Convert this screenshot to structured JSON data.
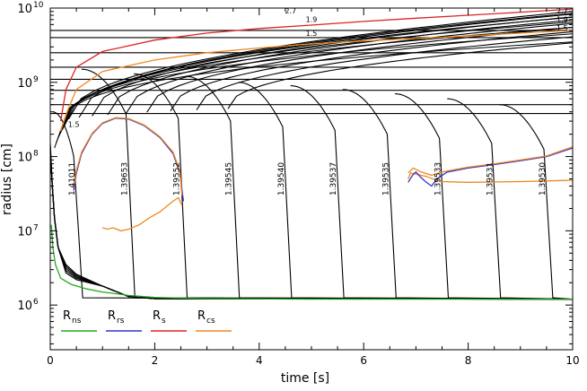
{
  "chart_data": {
    "type": "line",
    "xlabel": "time [s]",
    "ylabel": "radius [cm]",
    "xlim": [
      0,
      10
    ],
    "ylim": [
      250000,
      10000000000
    ],
    "y_scale": "log",
    "x_ticks": [
      "0",
      "2",
      "4",
      "6",
      "8",
      "10"
    ],
    "y_ticks": [
      {
        "base": "10",
        "exp": "6",
        "value": 1000000
      },
      {
        "base": "10",
        "exp": "7",
        "value": 10000000
      },
      {
        "base": "10",
        "exp": "8",
        "value": 100000000
      },
      {
        "base": "10",
        "exp": "9",
        "value": 1000000000
      },
      {
        "base": "10",
        "exp": "10",
        "value": 10000000000
      }
    ],
    "legend": [
      {
        "label_main": "R",
        "label_sub": "ns",
        "color": "#22aa22"
      },
      {
        "label_main": "R",
        "label_sub": "rs",
        "color": "#3333cc"
      },
      {
        "label_main": "R",
        "label_sub": "s",
        "color": "#dd2222"
      },
      {
        "label_main": "R",
        "label_sub": "cs",
        "color": "#ee8822"
      }
    ],
    "legend_position": "bottom-left",
    "colors": {
      "black": "#000000",
      "green": "#22aa22",
      "blue": "#3333cc",
      "red": "#dd2222",
      "orange": "#ee8822"
    },
    "shell_labels": [
      {
        "text": "1.41011",
        "x": 0.5
      },
      {
        "text": "1.39653",
        "x": 1.5
      },
      {
        "text": "1.39552",
        "x": 2.5
      },
      {
        "text": "1.39545",
        "x": 3.5
      },
      {
        "text": "1.39540",
        "x": 4.5
      },
      {
        "text": "1.39537",
        "x": 5.5
      },
      {
        "text": "1.39535",
        "x": 6.5
      },
      {
        "text": "1.39533",
        "x": 7.5
      },
      {
        "text": "1.39531",
        "x": 8.5
      },
      {
        "text": "1.39530",
        "x": 9.5
      }
    ],
    "shell_label_y": 50000000,
    "small_labels": [
      {
        "text": "2.7",
        "x": 4.6,
        "y": 8500000000
      },
      {
        "text": "1.9",
        "x": 5.0,
        "y": 6500000000
      },
      {
        "text": "1.5",
        "x": 5.0,
        "y": 4200000000
      },
      {
        "text": "2.7",
        "x": 9.8,
        "y": 8500000000
      },
      {
        "text": "1.9",
        "x": 9.8,
        "y": 6500000000
      },
      {
        "text": "1.5",
        "x": 9.8,
        "y": 5000000000
      },
      {
        "text": "1.5",
        "x": 0.45,
        "y": 250000000
      }
    ],
    "series": [
      {
        "name": "",
        "color": "green",
        "points": [
          [
            0.02,
            12000000
          ],
          [
            0.05,
            6000000
          ],
          [
            0.1,
            3500000
          ],
          [
            0.2,
            2300000
          ],
          [
            0.4,
            1900000
          ],
          [
            0.7,
            1650000
          ],
          [
            1.0,
            1500000
          ],
          [
            1.5,
            1350000
          ],
          [
            2.0,
            1270000
          ],
          [
            3.0,
            1220000
          ],
          [
            5.0,
            1200000
          ],
          [
            10.0,
            1200000
          ]
        ]
      },
      {
        "name": "",
        "color": "red",
        "points": [
          [
            0.2,
            300000000
          ],
          [
            0.3,
            800000000
          ],
          [
            0.5,
            1600000000
          ],
          [
            1.0,
            2600000000
          ],
          [
            2.0,
            3700000000
          ],
          [
            3.0,
            4600000000
          ],
          [
            4.0,
            5300000000
          ],
          [
            5.0,
            5900000000
          ],
          [
            6.0,
            6600000000
          ],
          [
            7.0,
            7300000000
          ],
          [
            8.0,
            8000000000
          ],
          [
            9.0,
            8800000000
          ],
          [
            10.0,
            9700000000
          ]
        ]
      },
      {
        "name": "",
        "color": "orange",
        "points": [
          [
            0.2,
            220000000
          ],
          [
            0.35,
            450000000
          ],
          [
            0.5,
            800000000
          ],
          [
            1.0,
            1400000000
          ],
          [
            2.0,
            2000000000
          ],
          [
            3.0,
            2500000000
          ],
          [
            4.0,
            2900000000
          ],
          [
            5.0,
            3300000000
          ],
          [
            6.0,
            3600000000
          ],
          [
            7.0,
            3900000000
          ],
          [
            8.0,
            4200000000
          ],
          [
            9.0,
            4600000000
          ],
          [
            10.0,
            5000000000
          ]
        ]
      },
      {
        "name": "",
        "color": "blue",
        "points": [
          [
            0.45,
            35000000
          ],
          [
            0.5,
            60000000
          ],
          [
            0.6,
            110000000
          ],
          [
            0.8,
            200000000
          ],
          [
            1.0,
            280000000
          ],
          [
            1.25,
            330000000
          ],
          [
            1.5,
            320000000
          ],
          [
            1.8,
            260000000
          ],
          [
            2.1,
            180000000
          ],
          [
            2.35,
            110000000
          ],
          [
            2.48,
            60000000
          ],
          [
            2.55,
            25000000
          ]
        ]
      },
      {
        "name": "",
        "color": "orange",
        "points": [
          [
            0.45,
            40000000
          ],
          [
            0.5,
            65000000
          ],
          [
            0.6,
            115000000
          ],
          [
            0.8,
            205000000
          ],
          [
            1.0,
            285000000
          ],
          [
            1.25,
            335000000
          ],
          [
            1.5,
            325000000
          ],
          [
            1.8,
            265000000
          ],
          [
            2.1,
            185000000
          ],
          [
            2.35,
            115000000
          ],
          [
            2.48,
            65000000
          ],
          [
            2.52,
            30000000
          ]
        ]
      },
      {
        "name": "",
        "color": "orange",
        "points": [
          [
            1.0,
            11000000
          ],
          [
            1.1,
            10500000
          ],
          [
            1.2,
            11000000
          ],
          [
            1.35,
            10000000
          ],
          [
            1.5,
            10500000
          ],
          [
            1.7,
            12000000
          ],
          [
            1.9,
            15000000
          ],
          [
            2.1,
            18000000
          ],
          [
            2.25,
            22000000
          ],
          [
            2.35,
            25000000
          ],
          [
            2.45,
            28000000
          ],
          [
            2.52,
            22000000
          ]
        ]
      },
      {
        "name": "",
        "color": "orange",
        "points": [
          [
            6.85,
            50000000
          ],
          [
            6.9,
            60000000
          ],
          [
            7.0,
            58000000
          ],
          [
            7.2,
            54000000
          ],
          [
            7.4,
            48000000
          ],
          [
            7.5,
            46000000
          ],
          [
            8.0,
            45000000
          ],
          [
            9.0,
            46000000
          ],
          [
            10.0,
            48000000
          ]
        ]
      },
      {
        "name": "",
        "color": "blue",
        "points": [
          [
            6.85,
            45000000
          ],
          [
            6.95,
            58000000
          ],
          [
            7.0,
            62000000
          ],
          [
            7.1,
            52000000
          ],
          [
            7.2,
            45000000
          ],
          [
            7.3,
            40000000
          ],
          [
            7.4,
            50000000
          ],
          [
            7.6,
            62000000
          ],
          [
            8.0,
            70000000
          ],
          [
            8.5,
            78000000
          ],
          [
            9.0,
            88000000
          ],
          [
            9.5,
            100000000
          ],
          [
            10.0,
            130000000
          ]
        ]
      },
      {
        "name": "",
        "color": "orange",
        "points": [
          [
            6.85,
            60000000
          ],
          [
            6.95,
            70000000
          ],
          [
            7.1,
            62000000
          ],
          [
            7.3,
            56000000
          ],
          [
            7.5,
            62000000
          ],
          [
            7.7,
            66000000
          ],
          [
            8.0,
            72000000
          ],
          [
            8.5,
            80000000
          ],
          [
            9.0,
            90000000
          ],
          [
            9.5,
            102000000
          ],
          [
            10.0,
            135000000
          ]
        ]
      }
    ],
    "horizontal_lines_y": [
      5000000000,
      4000000000,
      2500000000,
      1600000000,
      1100000000,
      780000000,
      500000000,
      380000000
    ],
    "collapse_times": [
      0.5,
      1.5,
      2.5,
      3.5,
      4.5,
      5.5,
      6.5,
      7.5,
      8.5,
      9.5
    ],
    "collapse_start_y": [
      400000000,
      1500000000,
      1300000000,
      1200000000,
      1000000000,
      900000000,
      800000000,
      700000000,
      600000000,
      500000000
    ],
    "rising_curves_start_t": [
      0.35,
      0.55,
      0.8,
      1.1,
      1.45,
      1.85,
      2.3,
      2.8,
      3.4
    ]
  }
}
